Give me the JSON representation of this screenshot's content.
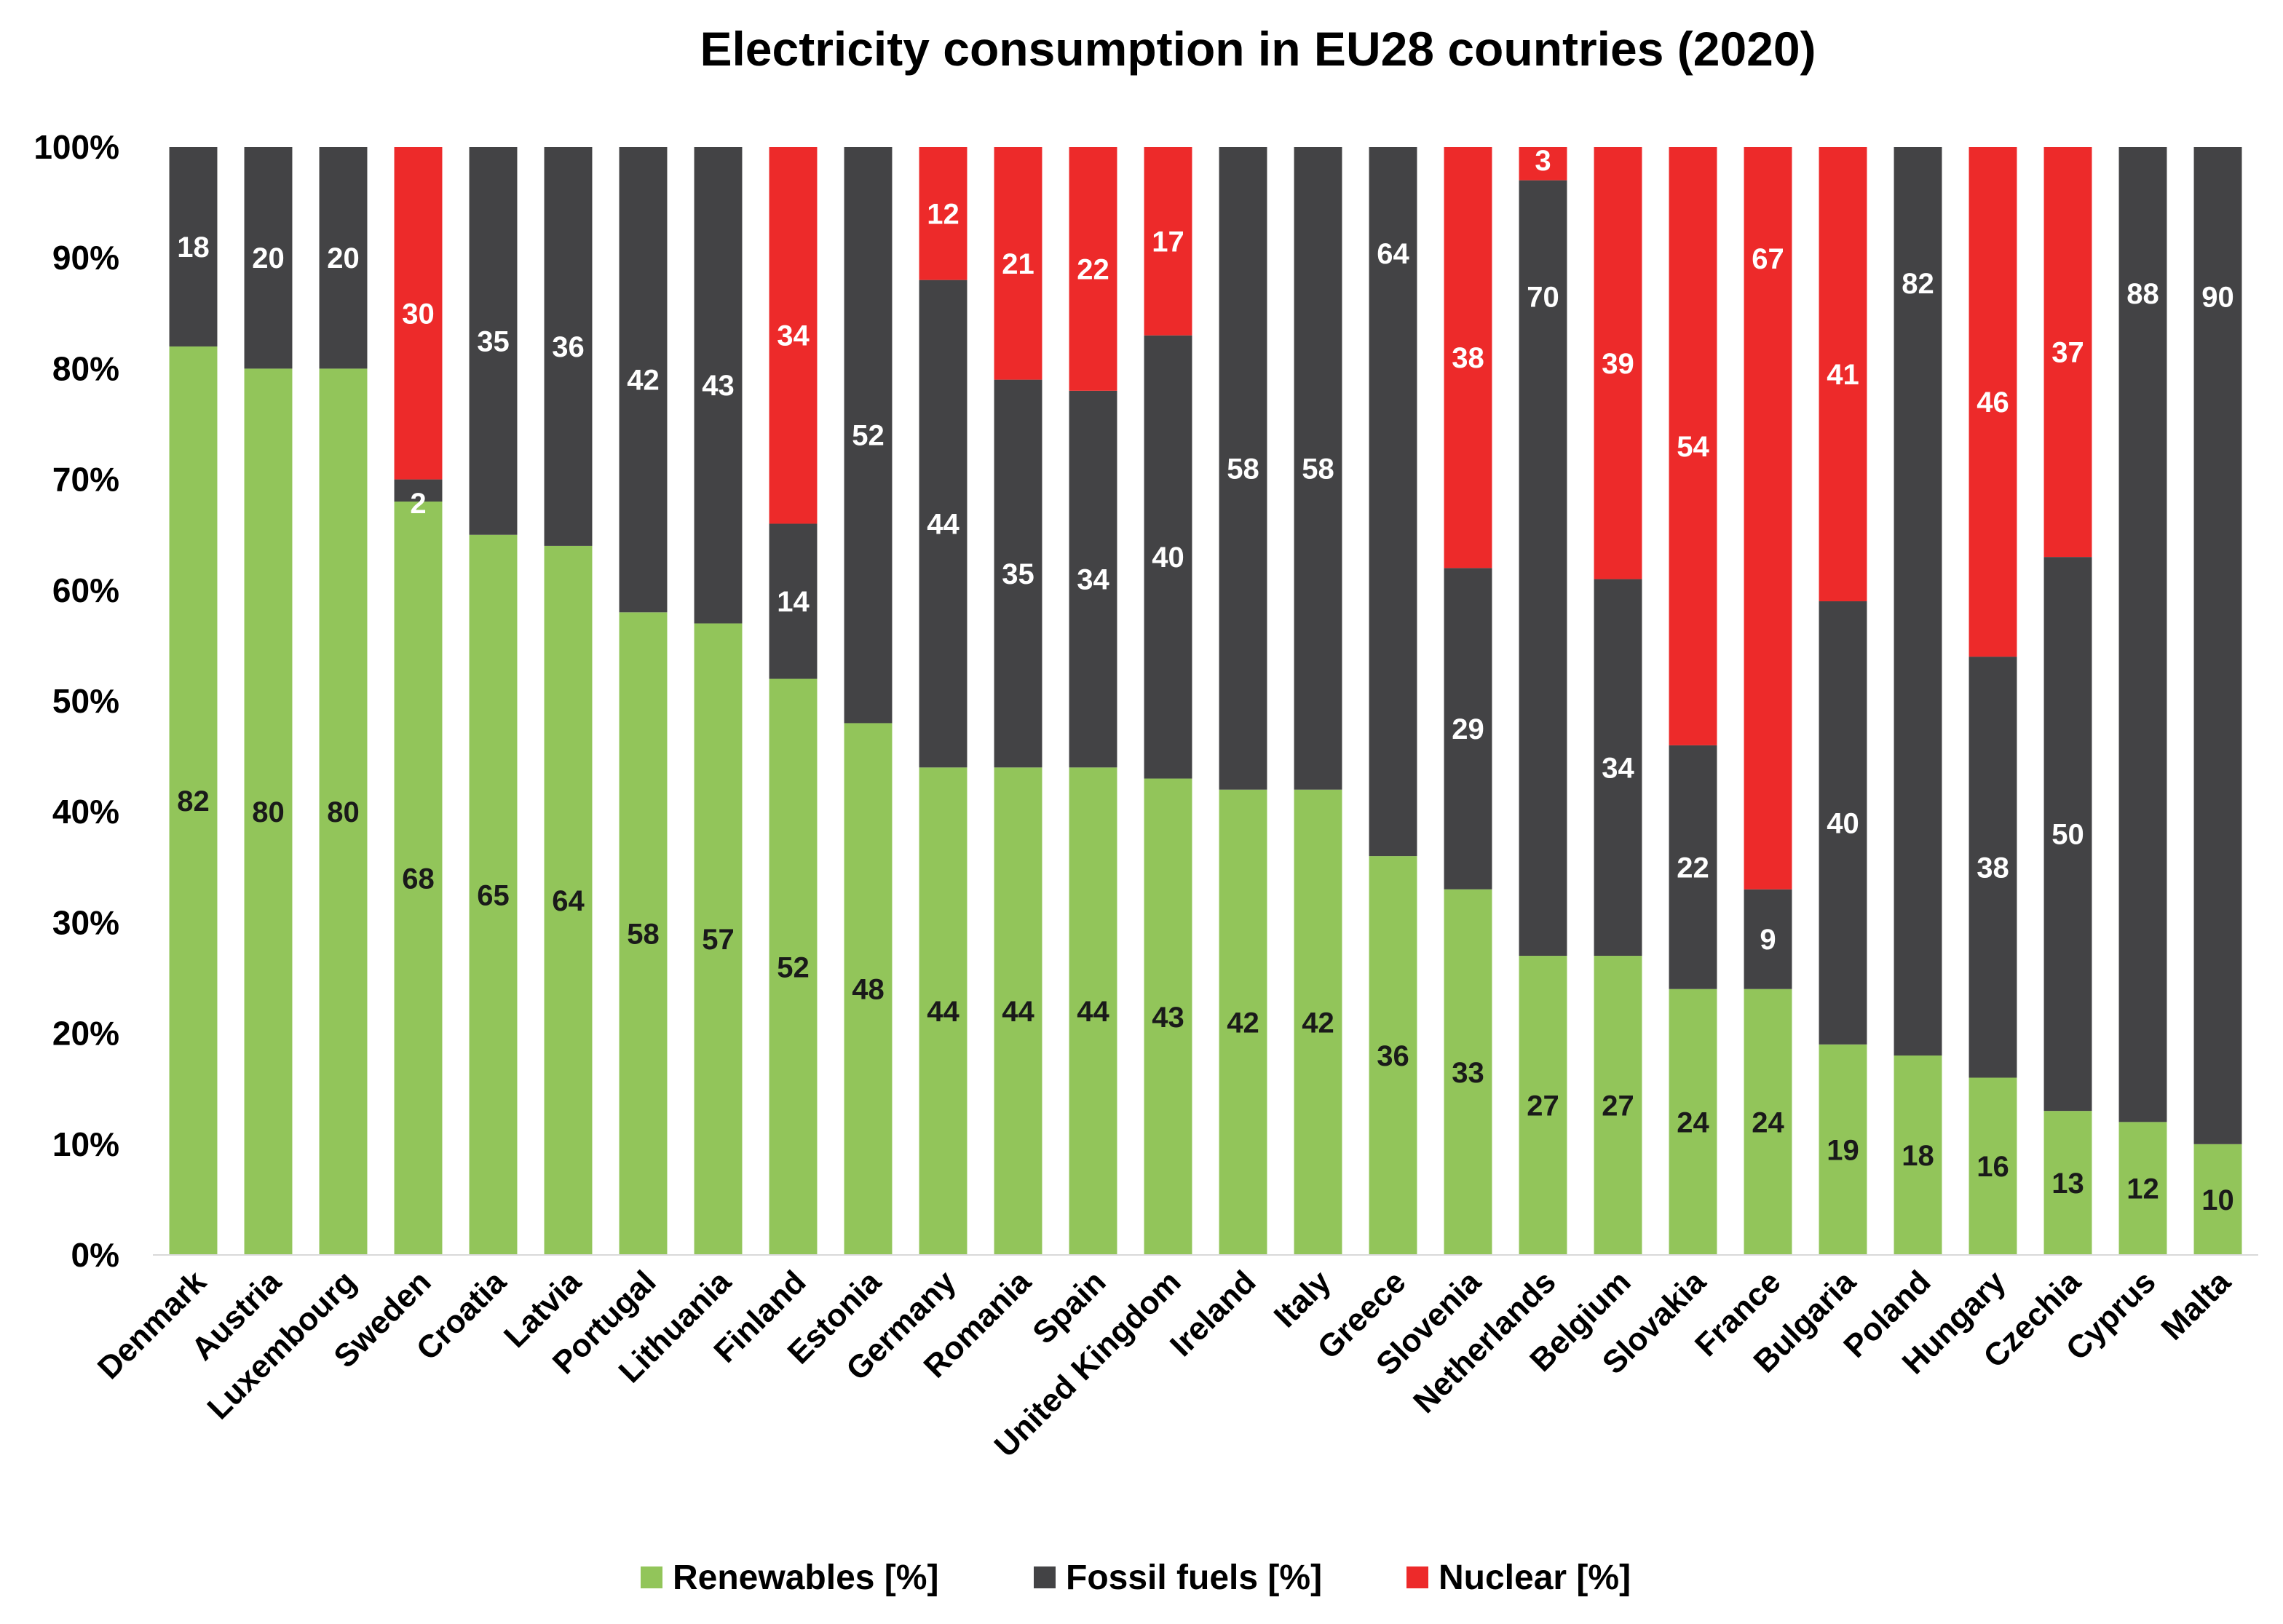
{
  "chart_data": {
    "type": "bar",
    "stacked": true,
    "title": "Electricity consumption in EU28 countries (2020)",
    "xlabel": "",
    "ylabel": "",
    "ylim": [
      0,
      100
    ],
    "yticks": [
      "0%",
      "10%",
      "20%",
      "30%",
      "40%",
      "50%",
      "60%",
      "70%",
      "80%",
      "90%",
      "100%"
    ],
    "categories": [
      "Denmark",
      "Austria",
      "Luxembourg",
      "Sweden",
      "Croatia",
      "Latvia",
      "Portugal",
      "Lithuania",
      "Finland",
      "Estonia",
      "Germany",
      "Romania",
      "Spain",
      "United Kingdom",
      "Ireland",
      "Italy",
      "Greece",
      "Slovenia",
      "Netherlands",
      "Belgium",
      "Slovakia",
      "France",
      "Bulgaria",
      "Poland",
      "Hungary",
      "Czechia",
      "Cyprus",
      "Malta"
    ],
    "series": [
      {
        "name": "Renewables [%]",
        "color": "#92c55a",
        "label_color": "#1a1a1a",
        "values": [
          82,
          80,
          80,
          68,
          65,
          64,
          58,
          57,
          52,
          48,
          44,
          44,
          44,
          43,
          42,
          42,
          36,
          33,
          27,
          27,
          24,
          24,
          19,
          18,
          16,
          13,
          12,
          10
        ]
      },
      {
        "name": "Fossil fuels [%]",
        "color": "#434345",
        "label_color": "#ffffff",
        "values": [
          18,
          20,
          20,
          2,
          35,
          36,
          42,
          43,
          14,
          52,
          44,
          35,
          34,
          40,
          58,
          58,
          64,
          29,
          70,
          34,
          22,
          9,
          40,
          82,
          38,
          50,
          88,
          90
        ]
      },
      {
        "name": "Nuclear [%]",
        "color": "#ed2a2a",
        "label_color": "#ffffff",
        "values": [
          0,
          0,
          0,
          30,
          0,
          0,
          0,
          0,
          34,
          0,
          12,
          21,
          22,
          17,
          0,
          0,
          0,
          38,
          3,
          39,
          54,
          67,
          41,
          0,
          46,
          37,
          0,
          0
        ]
      }
    ],
    "legend_position": "bottom",
    "grid": false
  }
}
